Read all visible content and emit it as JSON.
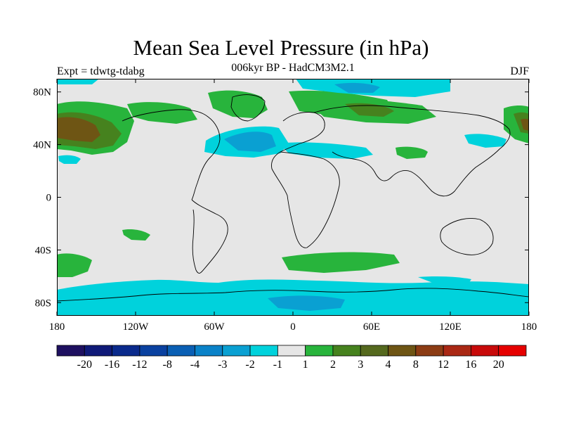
{
  "header": {
    "title": "Mean Sea Level Pressure (in hPa)",
    "subtitle": "006kyr BP - HadCM3M2.1",
    "left_label": "Expt = tdwtg-tdabg",
    "right_label": "DJF"
  },
  "map": {
    "lon_ticks": [
      "180",
      "120W",
      "60W",
      "0",
      "60E",
      "120E",
      "180"
    ],
    "lat_ticks": [
      "80N",
      "40N",
      "0",
      "40S",
      "80S"
    ],
    "background_color": "#e6e6e6"
  },
  "colorbar": {
    "labels": [
      "-20",
      "-16",
      "-12",
      "-8",
      "-4",
      "-3",
      "-2",
      "-1",
      "1",
      "2",
      "3",
      "4",
      "8",
      "12",
      "16",
      "20"
    ],
    "colors": [
      "#1e1060",
      "#0f1a78",
      "#0a2a8c",
      "#0a41a0",
      "#0a5fb4",
      "#0a82c8",
      "#0aa0d2",
      "#00d2dc",
      "#e6e6e6",
      "#28b43c",
      "#46821e",
      "#55691e",
      "#6e5514",
      "#8c3c14",
      "#aa2814",
      "#c80a0a",
      "#e60000"
    ]
  }
}
